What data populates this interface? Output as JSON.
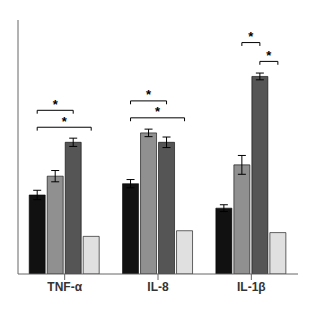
{
  "chart_data": {
    "type": "bar",
    "categories": [
      "TNF-α",
      "IL-8",
      "IL-1β"
    ],
    "series": [
      {
        "color": "#111111",
        "values": [
          4.2,
          4.8,
          3.5
        ],
        "errors": [
          0.25,
          0.22,
          0.18
        ]
      },
      {
        "color": "#909090",
        "values": [
          5.2,
          7.5,
          5.8
        ],
        "errors": [
          0.3,
          0.2,
          0.5
        ]
      },
      {
        "color": "#555555",
        "values": [
          7.0,
          7.0,
          10.5
        ],
        "errors": [
          0.22,
          0.28,
          0.18
        ]
      },
      {
        "color": "#e0e0e0",
        "values": [
          2.0,
          2.3,
          2.2
        ],
        "errors": [
          0.0,
          0.0,
          0.0
        ]
      }
    ],
    "ylim": [
      0,
      13.5
    ],
    "tick_labels": "x",
    "grid": false,
    "annotations": [
      {
        "label": "*",
        "from": {
          "group": 0,
          "bar": 0
        },
        "to": {
          "group": 0,
          "bar": 2
        },
        "y": 8.7
      },
      {
        "label": "*",
        "from": {
          "group": 0,
          "bar": 0
        },
        "to": {
          "group": 0,
          "bar": 3
        },
        "y": 7.8
      },
      {
        "label": "*",
        "from": {
          "group": 1,
          "bar": 0
        },
        "to": {
          "group": 1,
          "bar": 2
        },
        "y": 9.2
      },
      {
        "label": "*",
        "from": {
          "group": 1,
          "bar": 0
        },
        "to": {
          "group": 1,
          "bar": 3
        },
        "y": 8.3
      },
      {
        "label": "*",
        "from": {
          "group": 2,
          "bar": 1
        },
        "to": {
          "group": 2,
          "bar": 2
        },
        "y": 12.3
      },
      {
        "label": "*",
        "from": {
          "group": 2,
          "bar": 2
        },
        "to": {
          "group": 2,
          "bar": 3
        },
        "y": 11.3
      }
    ]
  }
}
